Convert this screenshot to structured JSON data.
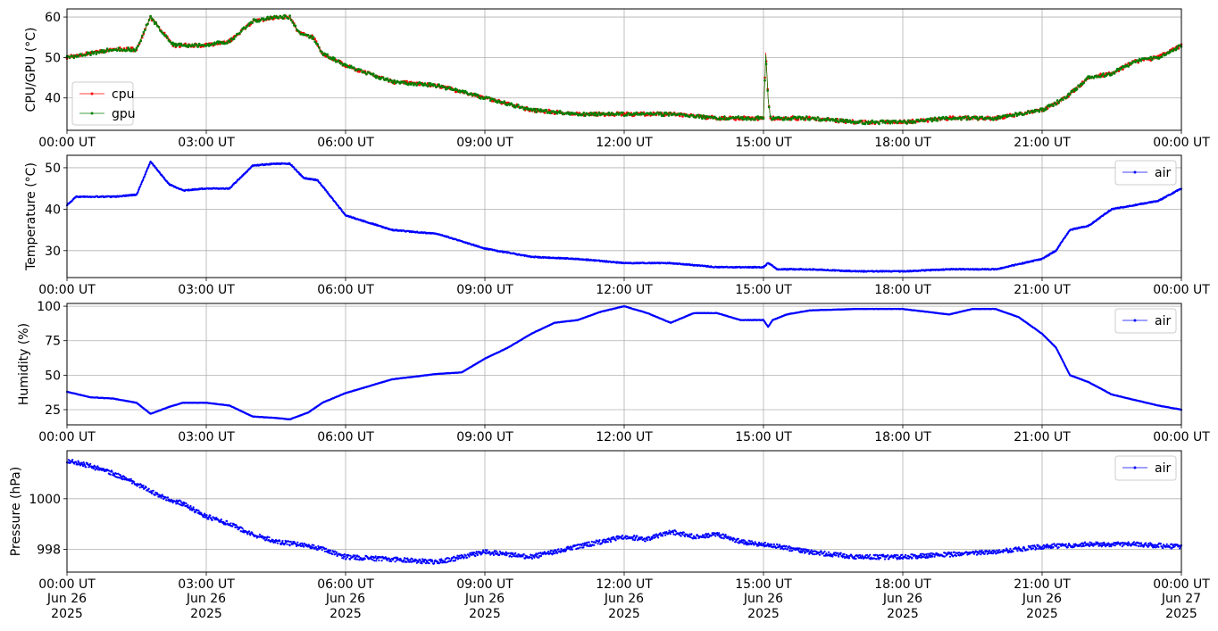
{
  "colors": {
    "cpu": "#ff0000",
    "gpu": "#008000",
    "air": "#0000ff",
    "grid": "#b0b0b0"
  },
  "x_axis": {
    "range": [
      "2025-06-26T00:00Z",
      "2025-06-27T00:00Z"
    ],
    "tick_labels": [
      "00:00 UT",
      "03:00 UT",
      "06:00 UT",
      "09:00 UT",
      "12:00 UT",
      "15:00 UT",
      "18:00 UT",
      "21:00 UT",
      "00:00 UT"
    ],
    "date_labels": [
      "Jun 26",
      "Jun 26",
      "Jun 26",
      "Jun 26",
      "Jun 26",
      "Jun 26",
      "Jun 26",
      "Jun 26",
      "Jun 27"
    ],
    "year_labels": [
      "2025",
      "2025",
      "2025",
      "2025",
      "2025",
      "2025",
      "2025",
      "2025",
      "2025"
    ]
  },
  "chart_data": [
    {
      "type": "line",
      "ylabel": "CPU/GPU (°C)",
      "ylim": [
        32,
        62
      ],
      "yticks": [
        40,
        50,
        60
      ],
      "grid": true,
      "legend": "lower-left",
      "x_hours": [
        0,
        0.5,
        1,
        1.5,
        1.8,
        2,
        2.3,
        3,
        3.5,
        4,
        4.5,
        4.8,
        5,
        5.3,
        5.5,
        6,
        7,
        8,
        9,
        10,
        11,
        12,
        13,
        14,
        15,
        15.05,
        15.1,
        15.15,
        16,
        17,
        18,
        19,
        20,
        21,
        21.5,
        22,
        22.5,
        23,
        23.5,
        24
      ],
      "series": [
        {
          "name": "cpu",
          "values": [
            50,
            51,
            52,
            52,
            60,
            57,
            53,
            53,
            54,
            59,
            60,
            60,
            56,
            55,
            51,
            48,
            44,
            43,
            40,
            37,
            36,
            36,
            36,
            35,
            35,
            51,
            40,
            35,
            35,
            34,
            34,
            35,
            35,
            37,
            40,
            45,
            46,
            49,
            50,
            53
          ]
        },
        {
          "name": "gpu",
          "values": [
            50,
            51,
            52,
            52,
            60,
            57,
            53,
            53,
            54,
            59,
            60,
            60,
            56,
            55,
            51,
            48,
            44,
            43,
            40,
            37,
            36,
            36,
            36,
            35,
            35,
            51,
            40,
            35,
            35,
            34,
            34,
            35,
            35,
            37,
            40,
            45,
            46,
            49,
            50,
            53
          ]
        }
      ]
    },
    {
      "type": "line",
      "ylabel": "Temperature (°C)",
      "ylim": [
        23.5,
        53
      ],
      "yticks": [
        30,
        40,
        50
      ],
      "grid": true,
      "legend": "top-right",
      "x_hours": [
        0,
        0.2,
        0.5,
        1,
        1.5,
        1.8,
        2.2,
        2.5,
        3,
        3.5,
        4,
        4.5,
        4.8,
        5.1,
        5.4,
        6,
        7,
        8,
        9,
        10,
        11,
        12,
        13,
        14,
        15,
        15.1,
        15.3,
        16,
        17,
        18,
        19,
        20,
        21,
        21.3,
        21.6,
        22,
        22.5,
        23,
        23.5,
        24
      ],
      "series": [
        {
          "name": "air",
          "values": [
            41,
            43,
            43,
            43,
            43.5,
            51.5,
            46,
            44.5,
            45,
            45,
            50.5,
            51,
            51,
            47.5,
            47,
            38.5,
            35,
            34,
            30.5,
            28.5,
            28,
            27,
            27,
            26,
            26,
            27,
            25.5,
            25.5,
            25,
            25,
            25.5,
            25.5,
            28,
            30,
            35,
            36,
            40,
            41,
            42,
            45
          ]
        }
      ]
    },
    {
      "type": "line",
      "ylabel": "Humidity (%)",
      "ylim": [
        14,
        102
      ],
      "yticks": [
        25,
        50,
        75,
        100
      ],
      "grid": true,
      "legend": "top-right",
      "x_hours": [
        0,
        0.5,
        1,
        1.5,
        1.8,
        2.2,
        2.5,
        3,
        3.5,
        4,
        4.5,
        4.8,
        5.2,
        5.5,
        6,
        7,
        8,
        8.5,
        9,
        9.5,
        10,
        10.5,
        11,
        11.5,
        12,
        12.5,
        13,
        13.5,
        14,
        14.5,
        15,
        15.1,
        15.2,
        15.5,
        16,
        17,
        18,
        19,
        19.5,
        20,
        20.5,
        21,
        21.3,
        21.6,
        22,
        22.5,
        23,
        23.5,
        24
      ],
      "series": [
        {
          "name": "air",
          "values": [
            38,
            34,
            33,
            30,
            22,
            27,
            30,
            30,
            28,
            20,
            19,
            18,
            23,
            30,
            37,
            47,
            51,
            52,
            62,
            70,
            80,
            88,
            90,
            96,
            100,
            95,
            88,
            95,
            95,
            90,
            90,
            85,
            90,
            94,
            97,
            98,
            98,
            94,
            98,
            98,
            92,
            80,
            70,
            50,
            45,
            36,
            32,
            28,
            25
          ]
        }
      ]
    },
    {
      "type": "line",
      "ylabel": "Pressure (hPa)",
      "ylim": [
        997.1,
        1001.9
      ],
      "yticks": [
        998,
        1000
      ],
      "grid": true,
      "legend": "top-right",
      "x_hours": [
        0,
        0.5,
        1,
        1.5,
        2,
        2.5,
        3,
        3.5,
        4,
        4.5,
        5,
        5.5,
        6,
        7,
        8,
        9,
        10,
        11,
        12,
        12.5,
        13,
        13.5,
        14,
        14.5,
        15,
        16,
        17,
        18,
        19,
        20,
        21,
        22,
        23,
        24
      ],
      "series": [
        {
          "name": "air",
          "values": [
            1001.5,
            1001.3,
            1001,
            1000.6,
            1000.1,
            999.8,
            999.3,
            999.0,
            998.6,
            998.3,
            998.2,
            998.0,
            997.7,
            997.6,
            997.5,
            997.9,
            997.7,
            998.1,
            998.5,
            998.4,
            998.7,
            998.5,
            998.6,
            998.3,
            998.2,
            997.9,
            997.7,
            997.7,
            997.8,
            997.9,
            998.1,
            998.2,
            998.2,
            998.1
          ]
        }
      ]
    }
  ]
}
